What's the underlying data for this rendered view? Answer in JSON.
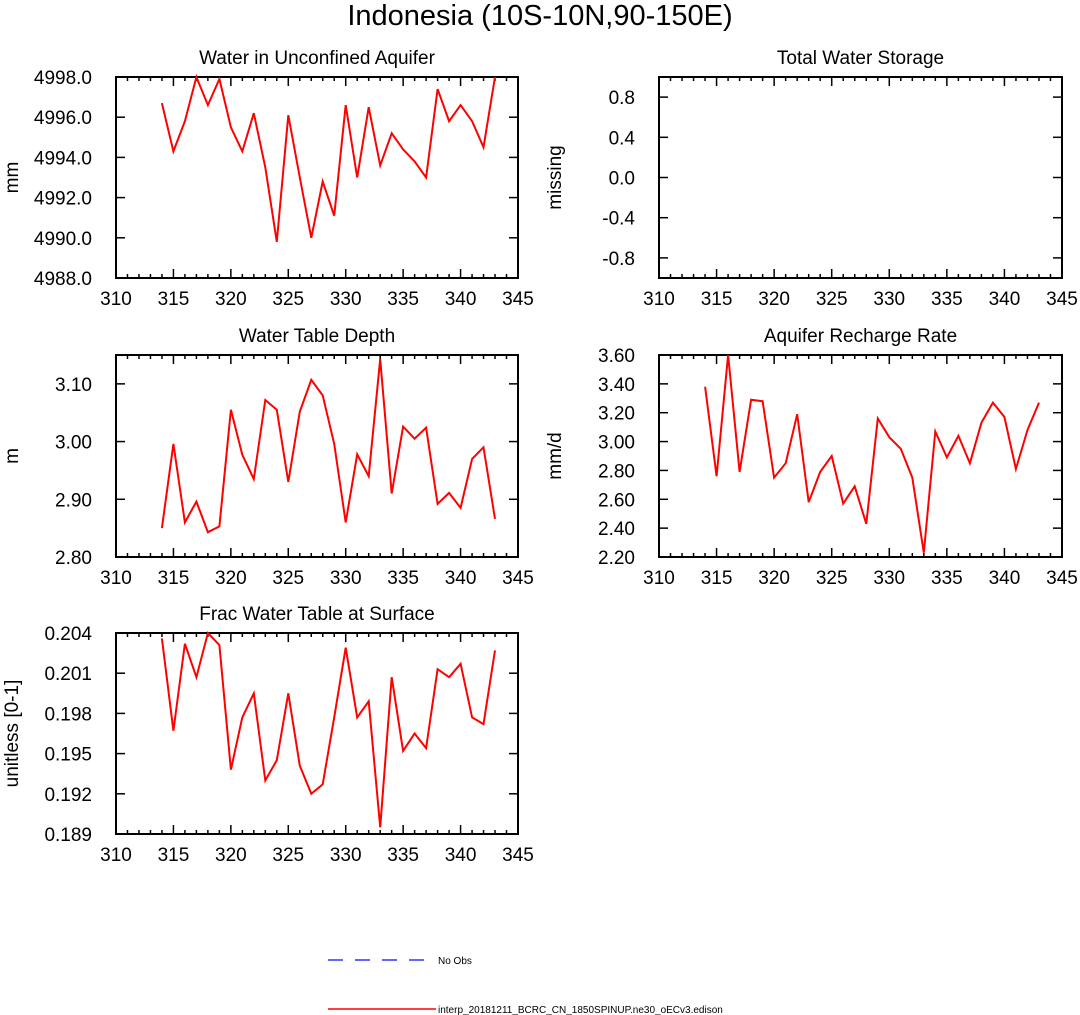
{
  "title": "Indonesia (10S-10N,90-150E)",
  "colors": {
    "model": "#ff0000",
    "obs": "#3333ff",
    "axis": "#000000"
  },
  "legend": [
    {
      "label": "No Obs",
      "style": "dashed",
      "color": "#3333ff"
    },
    {
      "label": "interp_20181211_BCRC_CN_1850SPINUP.ne30_oECv3.edison",
      "style": "solid",
      "color": "#ff0000"
    }
  ],
  "chart_data": [
    {
      "type": "line",
      "title": "Water in Unconfined Aquifer",
      "xlabel": "",
      "ylabel": "mm",
      "xlim": [
        310,
        345
      ],
      "ylim": [
        4988,
        4998
      ],
      "xticks": [
        310,
        315,
        320,
        325,
        330,
        335,
        340,
        345
      ],
      "yticks": [
        4988.0,
        4990.0,
        4992.0,
        4994.0,
        4996.0,
        4998.0
      ],
      "ytick_labels": [
        "4988.0",
        "4990.0",
        "4992.0",
        "4994.0",
        "4996.0",
        "4998.0"
      ],
      "x": [
        314,
        315,
        316,
        317,
        318,
        319,
        320,
        321,
        322,
        323,
        324,
        325,
        326,
        327,
        328,
        329,
        330,
        331,
        332,
        333,
        334,
        335,
        336,
        337,
        338,
        339,
        340,
        341,
        342,
        343
      ],
      "series": [
        {
          "name": "model",
          "values": [
            4996.7,
            4994.3,
            4995.8,
            4998.0,
            4996.6,
            4997.9,
            4995.5,
            4994.3,
            4996.2,
            4993.5,
            4989.8,
            4996.1,
            4993.0,
            4990.0,
            4992.8,
            4991.1,
            4996.6,
            4993.0,
            4996.5,
            4993.6,
            4995.2,
            4994.4,
            4993.8,
            4993.0,
            4997.4,
            4995.8,
            4996.6,
            4995.8,
            4994.5,
            4998.0
          ]
        }
      ]
    },
    {
      "type": "line",
      "title": "Total Water Storage",
      "xlabel": "",
      "ylabel": "missing",
      "xlim": [
        310,
        345
      ],
      "ylim": [
        -1.0,
        1.0
      ],
      "xticks": [
        310,
        315,
        320,
        325,
        330,
        335,
        340,
        345
      ],
      "yticks": [
        -0.8,
        -0.4,
        0.0,
        0.4,
        0.8
      ],
      "ytick_labels": [
        "-0.8",
        "-0.4",
        "0.0",
        "0.4",
        "0.8"
      ],
      "x": [],
      "series": []
    },
    {
      "type": "line",
      "title": "Water Table Depth",
      "xlabel": "",
      "ylabel": "m",
      "xlim": [
        310,
        345
      ],
      "ylim": [
        2.8,
        3.15
      ],
      "xticks": [
        310,
        315,
        320,
        325,
        330,
        335,
        340,
        345
      ],
      "yticks": [
        2.8,
        2.9,
        3.0,
        3.1
      ],
      "ytick_labels": [
        "2.80",
        "2.90",
        "3.00",
        "3.10"
      ],
      "x": [
        314,
        315,
        316,
        317,
        318,
        319,
        320,
        321,
        322,
        323,
        324,
        325,
        326,
        327,
        328,
        329,
        330,
        331,
        332,
        333,
        334,
        335,
        336,
        337,
        338,
        339,
        340,
        341,
        342,
        343
      ],
      "series": [
        {
          "name": "model",
          "values": [
            2.85,
            2.996,
            2.86,
            2.896,
            2.843,
            2.853,
            3.055,
            2.977,
            2.935,
            3.072,
            3.055,
            2.93,
            3.052,
            3.107,
            3.08,
            2.996,
            2.86,
            2.978,
            2.94,
            3.143,
            2.91,
            3.026,
            3.005,
            3.024,
            2.892,
            2.911,
            2.885,
            2.97,
            2.99,
            2.866
          ]
        }
      ]
    },
    {
      "type": "line",
      "title": "Aquifer Recharge Rate",
      "xlabel": "",
      "ylabel": "mm/d",
      "xlim": [
        310,
        345
      ],
      "ylim": [
        2.2,
        3.6
      ],
      "xticks": [
        310,
        315,
        320,
        325,
        330,
        335,
        340,
        345
      ],
      "yticks": [
        2.2,
        2.4,
        2.6,
        2.8,
        3.0,
        3.2,
        3.4,
        3.6
      ],
      "ytick_labels": [
        "2.20",
        "2.40",
        "2.60",
        "2.80",
        "3.00",
        "3.20",
        "3.40",
        "3.60"
      ],
      "x": [
        314,
        315,
        316,
        317,
        318,
        319,
        320,
        321,
        322,
        323,
        324,
        325,
        326,
        327,
        328,
        329,
        330,
        331,
        332,
        333,
        334,
        335,
        336,
        337,
        338,
        339,
        340,
        341,
        342,
        343
      ],
      "series": [
        {
          "name": "model",
          "values": [
            3.38,
            2.76,
            3.6,
            2.79,
            3.29,
            3.28,
            2.75,
            2.85,
            3.19,
            2.58,
            2.79,
            2.9,
            2.57,
            2.69,
            2.43,
            3.16,
            3.03,
            2.95,
            2.75,
            2.23,
            3.07,
            2.89,
            3.04,
            2.85,
            3.13,
            3.27,
            3.17,
            2.81,
            3.08,
            3.27
          ]
        }
      ]
    },
    {
      "type": "line",
      "title": "Frac Water Table at Surface",
      "xlabel": "",
      "ylabel": "unitless [0-1]",
      "xlim": [
        310,
        345
      ],
      "ylim": [
        0.189,
        0.204
      ],
      "xticks": [
        310,
        315,
        320,
        325,
        330,
        335,
        340,
        345
      ],
      "yticks": [
        0.189,
        0.192,
        0.195,
        0.198,
        0.201,
        0.204
      ],
      "ytick_labels": [
        "0.189",
        "0.192",
        "0.195",
        "0.198",
        "0.201",
        "0.204"
      ],
      "x": [
        314,
        315,
        316,
        317,
        318,
        319,
        320,
        321,
        322,
        323,
        324,
        325,
        326,
        327,
        328,
        329,
        330,
        331,
        332,
        333,
        334,
        335,
        336,
        337,
        338,
        339,
        340,
        341,
        342,
        343
      ],
      "series": [
        {
          "name": "model",
          "values": [
            0.2036,
            0.1967,
            0.2032,
            0.2007,
            0.204,
            0.2031,
            0.1938,
            0.1977,
            0.1995,
            0.193,
            0.1945,
            0.1995,
            0.1941,
            0.192,
            0.1927,
            0.1977,
            0.2029,
            0.1977,
            0.1989,
            0.1895,
            0.2007,
            0.1952,
            0.1965,
            0.1954,
            0.2013,
            0.2007,
            0.2017,
            0.1977,
            0.1972,
            0.2027
          ]
        }
      ]
    }
  ]
}
